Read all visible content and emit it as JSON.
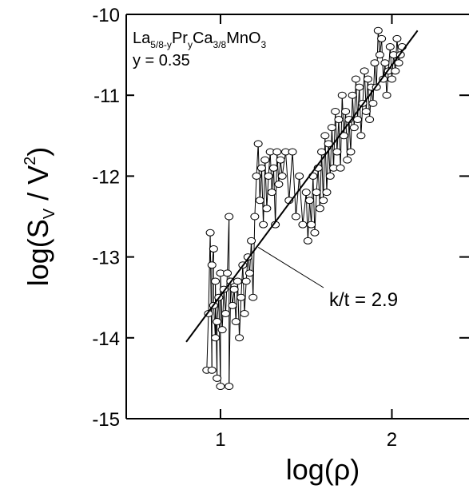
{
  "chart_data": {
    "type": "scatter",
    "xlabel": "log(ρ)",
    "ylabel_main": "log(S",
    "ylabel_sub": "V",
    "ylabel_mid": " / V",
    "ylabel_sup": "2",
    "ylabel_end": ")",
    "xlim": [
      0.45,
      2.45
    ],
    "ylim": [
      -15,
      -10
    ],
    "xticks": [
      1,
      2
    ],
    "xtick_labels": [
      "1",
      "2"
    ],
    "yticks": [
      -10,
      -11,
      -12,
      -13,
      -14,
      -15
    ],
    "ytick_labels": [
      "-10",
      "-11",
      "-12",
      "-13",
      "-14",
      "-15"
    ],
    "formula": {
      "p1": "La",
      "s1": "5/8-y",
      "p2": "Pr",
      "s2": "y",
      "p3": "Ca",
      "s3": "3/8",
      "p4": "MnO",
      "s4": "3"
    },
    "param": "y = 0.35",
    "annotation": "k/t = 2.9",
    "annotation_target": [
      1.22,
      -12.88
    ],
    "fit_line": {
      "x": [
        0.8,
        2.15
      ],
      "y": [
        -14.05,
        -10.2
      ]
    },
    "series": [
      {
        "x": [
          0.92,
          0.93,
          0.94,
          0.95,
          0.95,
          0.96,
          0.96,
          0.97,
          0.97,
          0.98,
          0.98,
          0.99,
          1.0,
          1.0,
          1.01,
          1.02,
          1.03,
          1.04,
          1.05,
          1.05,
          1.06,
          1.07,
          1.08,
          1.09,
          1.1,
          1.11,
          1.12,
          1.13,
          1.14,
          1.15,
          1.16,
          1.17,
          1.18,
          1.19,
          1.2,
          1.21,
          1.22,
          1.23,
          1.24,
          1.25,
          1.26,
          1.27,
          1.28,
          1.29,
          1.3,
          1.31,
          1.32,
          1.33,
          1.34,
          1.35,
          1.36,
          1.38,
          1.4,
          1.42,
          1.44,
          1.46,
          1.48,
          1.5,
          1.51,
          1.52,
          1.53,
          1.54,
          1.55,
          1.56,
          1.57,
          1.58,
          1.59,
          1.6,
          1.61,
          1.62,
          1.63,
          1.64,
          1.65,
          1.66,
          1.67,
          1.68,
          1.69,
          1.7,
          1.71,
          1.72,
          1.73,
          1.74,
          1.75,
          1.76,
          1.77,
          1.78,
          1.79,
          1.8,
          1.81,
          1.82,
          1.83,
          1.84,
          1.85,
          1.86,
          1.87,
          1.88,
          1.89,
          1.9,
          1.91,
          1.92,
          1.93,
          1.94,
          1.95,
          1.96,
          1.97,
          1.98,
          1.99,
          2.0,
          2.01,
          2.02,
          2.03,
          2.04,
          2.05,
          2.06
        ],
        "y": [
          -14.4,
          -13.7,
          -12.7,
          -14.4,
          -13.1,
          -12.9,
          -13.6,
          -14.0,
          -13.3,
          -14.5,
          -13.8,
          -13.5,
          -14.6,
          -13.2,
          -13.9,
          -13.4,
          -13.7,
          -13.2,
          -12.5,
          -14.6,
          -13.3,
          -13.6,
          -13.4,
          -13.8,
          -13.3,
          -14.0,
          -13.5,
          -13.1,
          -13.7,
          -13.3,
          -13.0,
          -13.2,
          -12.8,
          -13.5,
          -12.5,
          -12.0,
          -11.6,
          -12.3,
          -11.9,
          -12.6,
          -11.8,
          -12.4,
          -12.0,
          -11.7,
          -12.2,
          -11.9,
          -12.6,
          -11.7,
          -12.1,
          -11.8,
          -12.0,
          -11.7,
          -12.3,
          -11.7,
          -12.5,
          -12.0,
          -12.6,
          -12.2,
          -12.8,
          -12.3,
          -12.6,
          -12.0,
          -12.7,
          -12.2,
          -11.9,
          -12.4,
          -11.7,
          -12.3,
          -11.5,
          -12.2,
          -11.6,
          -12.0,
          -11.4,
          -11.9,
          -11.2,
          -11.7,
          -11.3,
          -11.9,
          -11.0,
          -11.5,
          -11.2,
          -11.8,
          -11.3,
          -11.7,
          -11.0,
          -11.4,
          -10.8,
          -11.3,
          -10.9,
          -11.5,
          -11.1,
          -10.7,
          -11.2,
          -10.8,
          -11.3,
          -10.9,
          -11.1,
          -10.6,
          -10.9,
          -10.2,
          -10.5,
          -10.3,
          -10.8,
          -10.6,
          -11.0,
          -10.7,
          -10.4,
          -10.8,
          -10.5,
          -10.7,
          -10.3,
          -10.6,
          -10.5,
          -10.4
        ]
      }
    ]
  }
}
